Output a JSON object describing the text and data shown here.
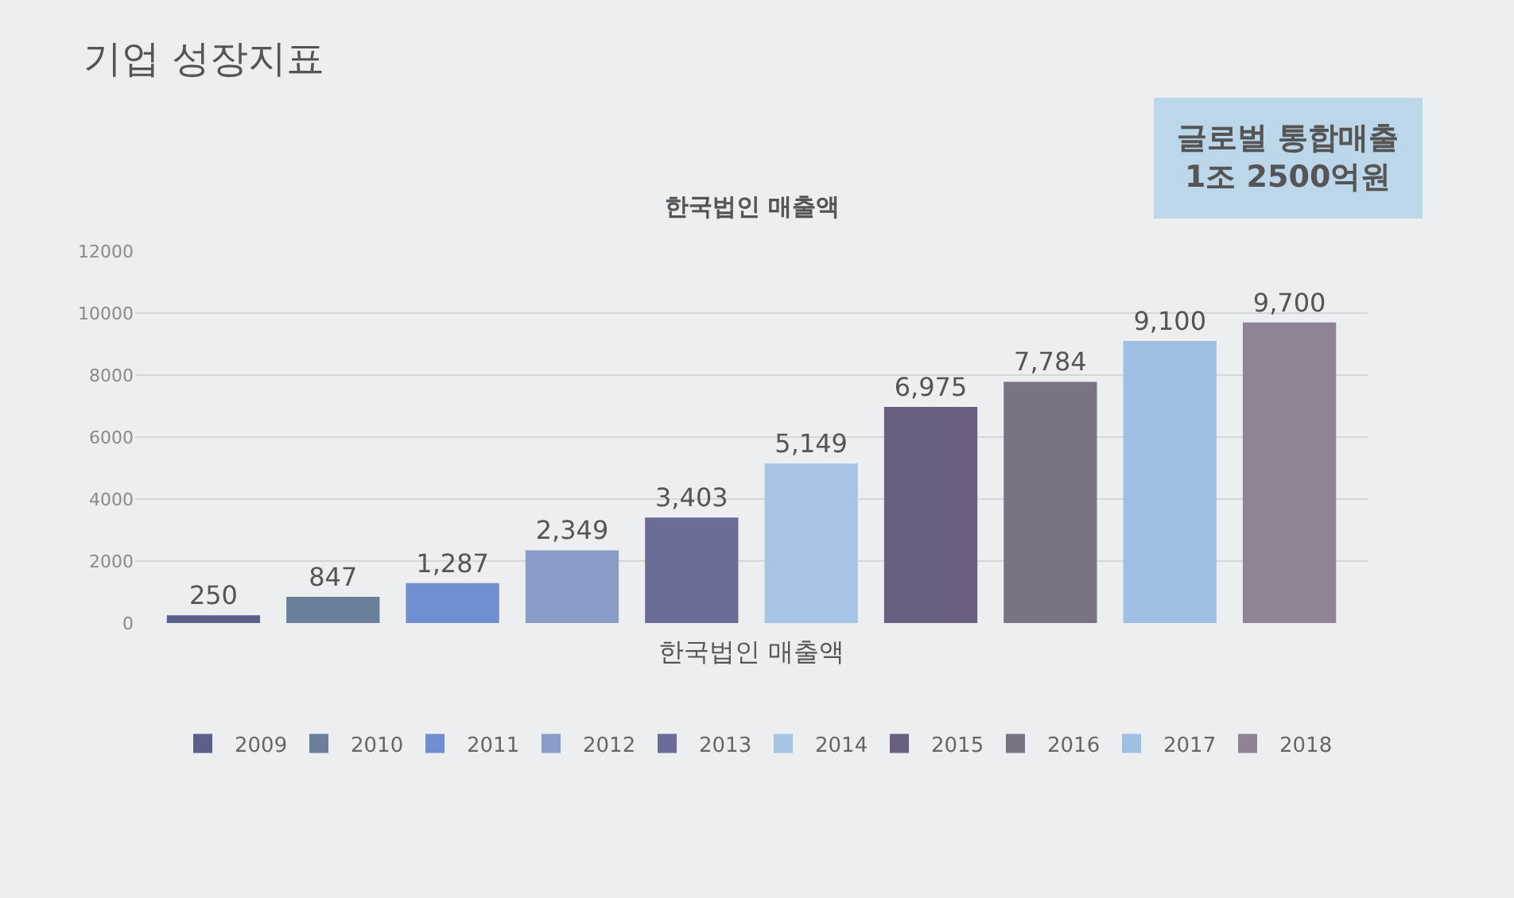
{
  "chart_data": {
    "type": "bar",
    "title": "기업 성장지표",
    "subtitle": "한국법인 매출액",
    "xlabel": "한국법인 매출액",
    "annotations": [
      "글로벌 통합매출\n1조 2500억원"
    ],
    "categories": [
      null
    ],
    "series": [
      {
        "name": "2009",
        "color": "#5b5f8a",
        "values": [
          250
        ],
        "value_labels": [
          "250"
        ]
      },
      {
        "name": "2010",
        "color": "#6a7f9a",
        "values": [
          847
        ],
        "value_labels": [
          "847"
        ]
      },
      {
        "name": "2011",
        "color": "#6f8fd0",
        "values": [
          1287
        ],
        "value_labels": [
          "1,287"
        ]
      },
      {
        "name": "2012",
        "color": "#8a9cc8",
        "values": [
          2349
        ],
        "value_labels": [
          "2,349"
        ]
      },
      {
        "name": "2013",
        "color": "#6b6d96",
        "values": [
          3403
        ],
        "value_labels": [
          "3,403"
        ]
      },
      {
        "name": "2014",
        "color": "#a8c4e4",
        "values": [
          5149
        ],
        "value_labels": [
          "5,149"
        ]
      },
      {
        "name": "2015",
        "color": "#6a5f80",
        "values": [
          6975
        ],
        "value_labels": [
          "6,975"
        ]
      },
      {
        "name": "2016",
        "color": "#7a7384",
        "values": [
          7784
        ],
        "value_labels": [
          "7,784"
        ]
      },
      {
        "name": "2017",
        "color": "#9fc0e4",
        "values": [
          9100
        ],
        "value_labels": [
          "9,100"
        ]
      },
      {
        "name": "2018",
        "color": "#8f8496",
        "values": [
          9700
        ],
        "value_labels": [
          "9,700"
        ]
      }
    ],
    "ylim": [
      0,
      12000
    ],
    "yticks": [
      0,
      2000,
      4000,
      6000,
      8000,
      10000,
      12000
    ],
    "grid": "y",
    "legend": "bottom"
  }
}
